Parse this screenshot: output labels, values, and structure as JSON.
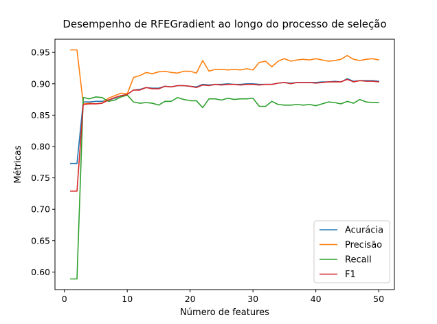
{
  "chart_data": {
    "type": "line",
    "title": "Desempenho de RFEGradient ao longo do processo de seleção",
    "xlabel": "Número de features",
    "ylabel": "Métricas",
    "xlim": [
      -1.5,
      52.5
    ],
    "ylim": [
      0.572,
      0.971
    ],
    "x_ticks": [
      0,
      10,
      20,
      30,
      40,
      50
    ],
    "y_ticks": [
      0.6,
      0.65,
      0.7,
      0.75,
      0.8,
      0.85,
      0.9,
      0.95
    ],
    "grid": false,
    "legend_position": "lower-right",
    "x": [
      1,
      2,
      3,
      4,
      5,
      6,
      7,
      8,
      9,
      10,
      11,
      12,
      13,
      14,
      15,
      16,
      17,
      18,
      19,
      20,
      21,
      22,
      23,
      24,
      25,
      26,
      27,
      28,
      29,
      30,
      31,
      32,
      33,
      34,
      35,
      36,
      37,
      38,
      39,
      40,
      41,
      42,
      43,
      44,
      45,
      46,
      47,
      48,
      49,
      50
    ],
    "series": [
      {
        "name": "Acurácia",
        "color": "#1f77b4",
        "values": [
          0.773,
          0.773,
          0.871,
          0.871,
          0.872,
          0.872,
          0.874,
          0.877,
          0.881,
          0.883,
          0.89,
          0.891,
          0.894,
          0.893,
          0.893,
          0.896,
          0.895,
          0.897,
          0.897,
          0.896,
          0.895,
          0.899,
          0.898,
          0.899,
          0.899,
          0.9,
          0.899,
          0.899,
          0.9,
          0.9,
          0.899,
          0.899,
          0.899,
          0.901,
          0.902,
          0.901,
          0.902,
          0.902,
          0.902,
          0.902,
          0.903,
          0.903,
          0.904,
          0.903,
          0.908,
          0.904,
          0.905,
          0.905,
          0.905,
          0.904
        ]
      },
      {
        "name": "Precisão",
        "color": "#ff7f0e",
        "values": [
          0.954,
          0.954,
          0.868,
          0.869,
          0.868,
          0.869,
          0.877,
          0.881,
          0.885,
          0.884,
          0.91,
          0.913,
          0.918,
          0.916,
          0.919,
          0.92,
          0.918,
          0.917,
          0.92,
          0.92,
          0.917,
          0.937,
          0.92,
          0.923,
          0.923,
          0.922,
          0.923,
          0.922,
          0.924,
          0.922,
          0.934,
          0.936,
          0.927,
          0.936,
          0.94,
          0.936,
          0.938,
          0.939,
          0.938,
          0.94,
          0.938,
          0.936,
          0.937,
          0.939,
          0.945,
          0.939,
          0.937,
          0.939,
          0.94,
          0.938
        ]
      },
      {
        "name": "Recall",
        "color": "#2ca02c",
        "values": [
          0.589,
          0.589,
          0.878,
          0.876,
          0.879,
          0.878,
          0.872,
          0.874,
          0.879,
          0.882,
          0.871,
          0.869,
          0.87,
          0.869,
          0.866,
          0.872,
          0.872,
          0.878,
          0.875,
          0.873,
          0.873,
          0.862,
          0.876,
          0.876,
          0.874,
          0.877,
          0.875,
          0.876,
          0.876,
          0.877,
          0.864,
          0.864,
          0.872,
          0.867,
          0.866,
          0.866,
          0.867,
          0.866,
          0.867,
          0.865,
          0.868,
          0.871,
          0.87,
          0.868,
          0.872,
          0.869,
          0.875,
          0.871,
          0.87,
          0.87
        ]
      },
      {
        "name": "F1",
        "color": "#d62728",
        "values": [
          0.729,
          0.729,
          0.867,
          0.868,
          0.868,
          0.869,
          0.874,
          0.878,
          0.881,
          0.883,
          0.89,
          0.89,
          0.894,
          0.892,
          0.892,
          0.896,
          0.895,
          0.897,
          0.897,
          0.896,
          0.894,
          0.898,
          0.897,
          0.899,
          0.898,
          0.899,
          0.899,
          0.898,
          0.899,
          0.899,
          0.898,
          0.899,
          0.899,
          0.901,
          0.902,
          0.9,
          0.902,
          0.902,
          0.902,
          0.901,
          0.902,
          0.903,
          0.903,
          0.903,
          0.907,
          0.903,
          0.905,
          0.904,
          0.904,
          0.903
        ]
      }
    ]
  }
}
